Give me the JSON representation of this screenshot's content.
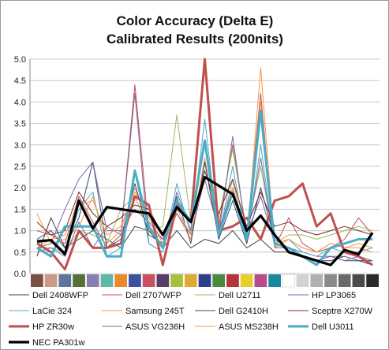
{
  "chart_data": {
    "type": "line",
    "title": [
      "Color Accuracy (Delta E)",
      "Calibrated Results (200nits)"
    ],
    "xlabel": "",
    "ylabel": "",
    "ylim": [
      0,
      5
    ],
    "yticks": [
      "0.0",
      "0.5",
      "1.0",
      "1.5",
      "2.0",
      "2.5",
      "3.0",
      "3.5",
      "4.0",
      "4.5",
      "5.0"
    ],
    "grid": true,
    "legend_position": "bottom",
    "x_axis_swatches": [
      "#7a5040",
      "#c99a86",
      "#5f7498",
      "#56703a",
      "#8a7fb0",
      "#5fb8a6",
      "#e68a2a",
      "#3d4f9e",
      "#c85060",
      "#5a3c6a",
      "#a7c23a",
      "#e2a836",
      "#2e3e8c",
      "#4a8a3e",
      "#b8323a",
      "#e6cf2a",
      "#b84a8e",
      "#1a88a0",
      "#ffffff",
      "#d2d2d2",
      "#b0b0b0",
      "#8a8a8a",
      "#6a6a6a",
      "#4a4a4a",
      "#2a2a2a"
    ],
    "series": [
      {
        "name": "Dell 2408WFP",
        "color": "#404040",
        "width": 1,
        "values": [
          0.4,
          1.3,
          0.6,
          0.8,
          1.0,
          0.8,
          0.6,
          1.1,
          1.0,
          0.6,
          1.0,
          0.6,
          0.8,
          0.7,
          1.0,
          0.6,
          0.8,
          0.5,
          0.5,
          0.4,
          0.3,
          0.3,
          0.4,
          0.3,
          0.2
        ]
      },
      {
        "name": "Dell 2707WFP",
        "color": "#c0504d",
        "width": 1,
        "values": [
          1.0,
          0.9,
          0.7,
          1.8,
          1.2,
          0.6,
          0.9,
          4.4,
          1.0,
          0.8,
          1.5,
          1.2,
          5.0,
          1.1,
          3.0,
          0.9,
          4.2,
          0.6,
          1.3,
          0.7,
          0.5,
          0.6,
          0.8,
          1.3,
          0.9
        ]
      },
      {
        "name": "Dell U2711",
        "color": "#9bbb59",
        "width": 1,
        "values": [
          0.6,
          0.6,
          0.5,
          1.0,
          0.9,
          0.7,
          1.5,
          1.8,
          1.0,
          1.1,
          3.7,
          1.2,
          3.1,
          1.3,
          2.9,
          1.0,
          2.5,
          0.7,
          0.9,
          0.9,
          0.8,
          0.9,
          1.0,
          1.1,
          1.0
        ]
      },
      {
        "name": "HP LP3065",
        "color": "#8064a2",
        "width": 1,
        "values": [
          0.5,
          0.6,
          0.4,
          1.2,
          0.6,
          1.1,
          0.9,
          4.2,
          0.7,
          0.5,
          1.9,
          1.0,
          5.0,
          0.9,
          3.2,
          0.8,
          2.7,
          0.6,
          0.6,
          0.5,
          0.4,
          0.4,
          0.4,
          0.3,
          0.3
        ]
      },
      {
        "name": "LaCie 324",
        "color": "#4bacc6",
        "width": 1,
        "values": [
          0.7,
          0.8,
          0.5,
          1.5,
          1.9,
          0.4,
          0.6,
          2.4,
          0.7,
          0.5,
          2.1,
          0.9,
          3.6,
          0.8,
          2.5,
          0.7,
          3.0,
          0.6,
          0.8,
          0.5,
          0.4,
          0.6,
          0.5,
          0.5,
          0.6
        ]
      },
      {
        "name": "Samsung 245T",
        "color": "#f79646",
        "width": 1,
        "values": [
          1.4,
          0.7,
          0.8,
          1.1,
          1.8,
          0.7,
          1.0,
          2.0,
          1.1,
          0.6,
          1.4,
          0.8,
          2.7,
          0.8,
          2.2,
          0.7,
          4.8,
          0.6,
          0.8,
          0.6,
          0.5,
          0.7,
          0.6,
          0.7,
          0.6
        ]
      },
      {
        "name": "Dell G2410H",
        "color": "#2c4d75",
        "width": 1,
        "values": [
          0.8,
          1.0,
          0.6,
          1.3,
          2.6,
          0.6,
          0.8,
          2.1,
          0.9,
          0.7,
          1.8,
          0.7,
          2.6,
          0.8,
          1.7,
          0.7,
          2.0,
          0.8,
          0.6,
          0.4,
          0.3,
          0.4,
          0.3,
          0.3,
          0.3
        ]
      },
      {
        "name": "Sceptre X270W",
        "color": "#772c2a",
        "width": 1,
        "values": [
          1.2,
          0.9,
          1.0,
          1.9,
          1.4,
          1.1,
          1.3,
          1.6,
          1.5,
          0.9,
          1.7,
          1.2,
          2.4,
          1.4,
          2.2,
          1.1,
          1.9,
          1.1,
          1.2,
          1.0,
          0.9,
          1.0,
          1.1,
          1.0,
          0.9
        ]
      },
      {
        "name": "HP ZR30w",
        "color": "#c0504d",
        "width": 3,
        "values": [
          0.7,
          0.5,
          0.1,
          1.0,
          0.6,
          0.6,
          0.7,
          1.8,
          1.6,
          0.2,
          1.6,
          1.2,
          5.0,
          1.0,
          1.1,
          1.3,
          0.8,
          1.7,
          1.8,
          2.1,
          1.1,
          1.4,
          0.5,
          0.4,
          0.2
        ]
      },
      {
        "name": "ASUS VG236H",
        "color": "#8064a2",
        "width": 1,
        "values": [
          0.6,
          0.7,
          1.5,
          2.2,
          2.6,
          1.0,
          1.0,
          1.5,
          1.2,
          0.8,
          1.4,
          0.9,
          2.2,
          1.0,
          2.0,
          0.9,
          1.8,
          0.7,
          0.6,
          0.4,
          0.3,
          0.4,
          0.3,
          0.4,
          0.3
        ]
      },
      {
        "name": "ASUS MS238H",
        "color": "#f79646",
        "width": 1,
        "values": [
          0.6,
          0.8,
          0.9,
          1.6,
          1.7,
          0.9,
          1.1,
          1.9,
          1.3,
          0.7,
          1.5,
          0.9,
          3.1,
          0.9,
          2.0,
          0.8,
          4.0,
          0.7,
          0.8,
          0.6,
          0.5,
          0.7,
          0.6,
          0.6,
          0.5
        ]
      },
      {
        "name": "Dell U3011",
        "color": "#4bacc6",
        "width": 3,
        "values": [
          0.6,
          0.4,
          1.1,
          1.1,
          1.1,
          0.4,
          0.4,
          2.4,
          1.1,
          0.6,
          1.7,
          1.2,
          3.1,
          0.9,
          1.9,
          0.8,
          3.8,
          0.7,
          0.6,
          0.4,
          0.2,
          0.6,
          0.7,
          0.8,
          0.8
        ]
      },
      {
        "name": "NEC PA301w",
        "color": "#000000",
        "width": 3.2,
        "values": [
          0.75,
          0.78,
          0.45,
          1.7,
          1.05,
          1.55,
          1.5,
          1.45,
          1.4,
          0.9,
          1.55,
          1.2,
          2.25,
          2.05,
          1.85,
          1.0,
          1.35,
          0.9,
          0.5,
          0.4,
          0.3,
          0.2,
          0.55,
          0.45,
          0.95
        ]
      }
    ]
  }
}
